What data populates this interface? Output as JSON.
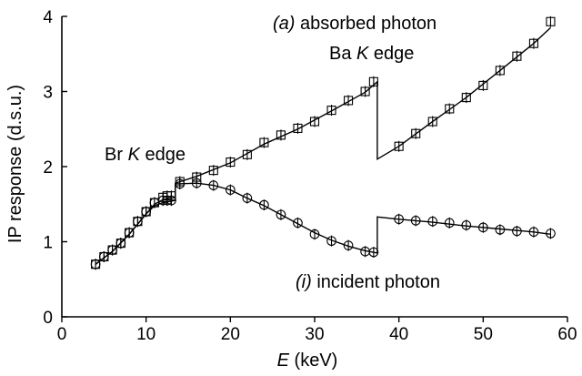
{
  "chart_data": {
    "type": "scatter",
    "xlabel_var": "E",
    "xlabel_unit": " (keV)",
    "ylabel": "IP response (d.s.u.)",
    "xlim": [
      0,
      60
    ],
    "ylim": [
      0,
      4
    ],
    "xticks": [
      0,
      10,
      20,
      30,
      40,
      50,
      60
    ],
    "yticks": [
      0,
      1,
      2,
      3,
      4
    ],
    "grid": false,
    "annotations": {
      "absorbed_tag": "(a)",
      "absorbed_text": " absorbed photon",
      "ba_pre": "Ba ",
      "ba_k": "K",
      "ba_post": " edge",
      "br_pre": "Br ",
      "br_k": "K",
      "br_post": " edge",
      "incident_tag": "(i)",
      "incident_text": " incident photon"
    },
    "series": [
      {
        "marker": "square",
        "x": [
          4,
          5,
          6,
          7,
          8,
          9,
          10,
          11,
          12,
          12.5,
          13,
          14,
          16,
          18,
          20,
          22,
          24,
          26,
          28,
          30,
          32,
          34,
          36,
          37,
          40,
          42,
          44,
          46,
          48,
          50,
          52,
          54,
          56,
          58
        ],
        "y": [
          0.7,
          0.8,
          0.89,
          0.98,
          1.12,
          1.27,
          1.4,
          1.52,
          1.59,
          1.61,
          1.61,
          1.8,
          1.86,
          1.95,
          2.06,
          2.16,
          2.32,
          2.42,
          2.51,
          2.6,
          2.75,
          2.88,
          3.0,
          3.13,
          2.27,
          2.44,
          2.6,
          2.77,
          2.92,
          3.08,
          3.28,
          3.47,
          3.64,
          3.93
        ]
      },
      {
        "marker": "circle",
        "x": [
          4,
          5,
          6,
          7,
          8,
          9,
          10,
          11,
          12,
          12.5,
          13,
          14,
          16,
          18,
          20,
          22,
          24,
          26,
          28,
          30,
          32,
          34,
          36,
          37,
          40,
          42,
          44,
          46,
          48,
          50,
          52,
          54,
          56,
          58
        ],
        "y": [
          0.7,
          0.8,
          0.89,
          0.98,
          1.12,
          1.27,
          1.4,
          1.52,
          1.55,
          1.55,
          1.55,
          1.77,
          1.78,
          1.75,
          1.69,
          1.58,
          1.49,
          1.36,
          1.25,
          1.1,
          1.01,
          0.95,
          0.87,
          0.86,
          1.3,
          1.28,
          1.27,
          1.25,
          1.22,
          1.19,
          1.16,
          1.14,
          1.13,
          1.11
        ]
      }
    ],
    "fits": [
      {
        "segments": [
          {
            "x": [
              4,
              6,
              8,
              10,
              11,
              12,
              13,
              13.47
            ],
            "y": [
              0.7,
              0.87,
              1.1,
              1.37,
              1.5,
              1.56,
              1.58,
              1.59
            ]
          },
          {
            "x": [
              13.47,
              16,
              20,
              24,
              28,
              32,
              36,
              37.44
            ],
            "y": [
              1.78,
              1.87,
              2.05,
              2.3,
              2.5,
              2.74,
              2.99,
              3.13
            ]
          },
          {
            "x": [
              37.44,
              40,
              44,
              48,
              52,
              56,
              58
            ],
            "y": [
              2.1,
              2.27,
              2.6,
              2.92,
              3.28,
              3.64,
              3.85
            ]
          }
        ]
      },
      {
        "segments": [
          {
            "x": [
              4,
              6,
              8,
              10,
              11,
              12,
              13,
              13.47
            ],
            "y": [
              0.7,
              0.87,
              1.1,
              1.37,
              1.48,
              1.52,
              1.54,
              1.55
            ]
          },
          {
            "x": [
              13.47,
              16,
              18,
              20,
              22,
              24,
              26,
              28,
              30,
              32,
              34,
              36,
              37.44
            ],
            "y": [
              1.77,
              1.78,
              1.75,
              1.69,
              1.58,
              1.48,
              1.36,
              1.24,
              1.12,
              1.02,
              0.94,
              0.88,
              0.85
            ]
          },
          {
            "x": [
              37.44,
              40,
              44,
              48,
              52,
              56,
              58
            ],
            "y": [
              1.33,
              1.3,
              1.26,
              1.21,
              1.17,
              1.13,
              1.1
            ]
          }
        ]
      }
    ]
  }
}
